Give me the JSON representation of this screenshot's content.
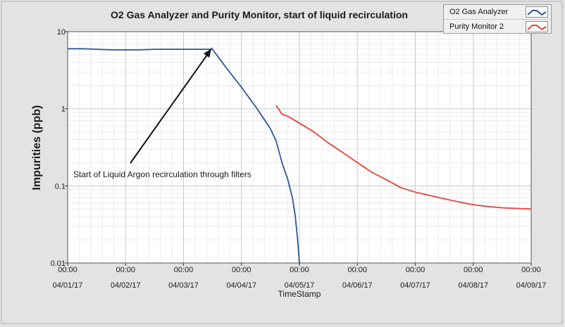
{
  "chart_data": {
    "type": "line",
    "title": "O2 Gas Analyzer and Purity Monitor, start of liquid recirculation",
    "xlabel": "TimeStamp",
    "ylabel": "Impurities (ppb)",
    "x_ticks": [
      {
        "value": 0,
        "time": "00:00",
        "date": "04/01/17"
      },
      {
        "value": 1,
        "time": "00:00",
        "date": "04/02/17"
      },
      {
        "value": 2,
        "time": "00:00",
        "date": "04/03/17"
      },
      {
        "value": 3,
        "time": "00:00",
        "date": "04/04/17"
      },
      {
        "value": 4,
        "time": "00:00",
        "date": "04/05/17"
      },
      {
        "value": 5,
        "time": "00:00",
        "date": "04/06/17"
      },
      {
        "value": 6,
        "time": "00:00",
        "date": "04/07/17"
      },
      {
        "value": 7,
        "time": "00:00",
        "date": "04/08/17"
      },
      {
        "value": 8,
        "time": "00:00",
        "date": "04/09/17"
      }
    ],
    "xlim": [
      0,
      8
    ],
    "y_scale": "log",
    "ylim": [
      0.01,
      10
    ],
    "y_ticks": [
      {
        "value": 0.01,
        "label": "0.01"
      },
      {
        "value": 0.1,
        "label": "0.1"
      },
      {
        "value": 1,
        "label": "1"
      },
      {
        "value": 10,
        "label": "10"
      }
    ],
    "grid": true,
    "legend_position": "top-right",
    "series": [
      {
        "name": "O2 Gas Analyzer",
        "color": "#2f5597",
        "points": [
          [
            0,
            6.0
          ],
          [
            0.25,
            6.0
          ],
          [
            0.5,
            5.9
          ],
          [
            0.75,
            5.8
          ],
          [
            1.0,
            5.8
          ],
          [
            1.25,
            5.8
          ],
          [
            1.5,
            5.9
          ],
          [
            1.75,
            5.9
          ],
          [
            2.0,
            5.9
          ],
          [
            2.25,
            5.9
          ],
          [
            2.5,
            5.9
          ],
          [
            2.48,
            6.1
          ],
          [
            2.5,
            5.9
          ],
          [
            2.75,
            3.3
          ],
          [
            3.0,
            1.9
          ],
          [
            3.25,
            1.05
          ],
          [
            3.5,
            0.55
          ],
          [
            3.6,
            0.38
          ],
          [
            3.7,
            0.2
          ],
          [
            3.8,
            0.12
          ],
          [
            3.88,
            0.07
          ],
          [
            3.93,
            0.04
          ],
          [
            3.97,
            0.02
          ],
          [
            4.0,
            0.01
          ]
        ]
      },
      {
        "name": "Purity Monitor 2",
        "color": "#e8413c",
        "points": [
          [
            3.6,
            1.1
          ],
          [
            3.7,
            0.85
          ],
          [
            3.8,
            0.8
          ],
          [
            4.0,
            0.65
          ],
          [
            4.25,
            0.5
          ],
          [
            4.5,
            0.36
          ],
          [
            4.75,
            0.27
          ],
          [
            5.0,
            0.2
          ],
          [
            5.25,
            0.15
          ],
          [
            5.5,
            0.12
          ],
          [
            5.75,
            0.095
          ],
          [
            6.0,
            0.083
          ],
          [
            6.25,
            0.075
          ],
          [
            6.5,
            0.068
          ],
          [
            6.75,
            0.062
          ],
          [
            7.0,
            0.057
          ],
          [
            7.25,
            0.054
          ],
          [
            7.5,
            0.052
          ],
          [
            7.75,
            0.051
          ],
          [
            8.0,
            0.05
          ]
        ]
      }
    ],
    "annotations": [
      {
        "text": "Start of Liquid Argon recirculation through filters",
        "arrow_to": [
          2.48,
          6.0
        ]
      }
    ]
  }
}
